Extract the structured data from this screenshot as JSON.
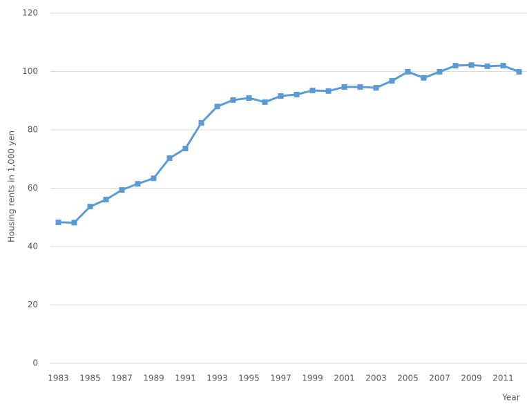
{
  "chart_data": {
    "type": "line",
    "y_label": "Housing rents in 1,000 yen",
    "x_label": "Year",
    "categories": [
      "1983",
      null,
      "1985",
      null,
      "1987",
      null,
      "1989",
      null,
      "1991",
      null,
      "1993",
      null,
      "1995",
      null,
      "1997",
      null,
      "1999",
      null,
      "2001",
      null,
      "2003",
      null,
      "2005",
      null,
      "2007",
      null,
      "2009",
      null,
      "2011",
      null
    ],
    "values": [
      48.3,
      48.2,
      53.7,
      56.1,
      59.4,
      61.5,
      63.4,
      70.3,
      73.6,
      82.4,
      88,
      90.2,
      90.9,
      89.5,
      91.6,
      92.1,
      93.5,
      93.3,
      94.7,
      94.7,
      94.4,
      96.8,
      99.9,
      97.8,
      99.9,
      102,
      102.2,
      101.8,
      102,
      99.9
    ],
    "color": "#5b9bd5",
    "ylim": [
      0,
      120
    ],
    "yticks": [
      0,
      20,
      40,
      60,
      80,
      100,
      120
    ],
    "grid": true
  }
}
